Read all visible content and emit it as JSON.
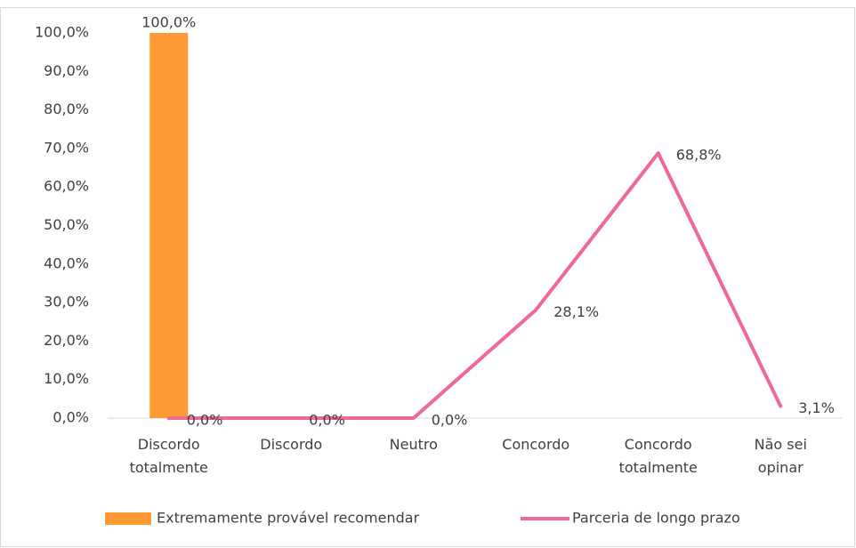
{
  "chart_data": {
    "type": "bar_line",
    "categories": [
      "Discordo totalmente",
      "Discordo",
      "Neutro",
      "Concordo",
      "Concordo totalmente",
      "Não sei opinar"
    ],
    "series": [
      {
        "name": "Extremamente provável recomendar",
        "type": "bar",
        "color": "#ff9933",
        "values": [
          100,
          null,
          null,
          null,
          null,
          null
        ],
        "value_labels": [
          "100,0%",
          null,
          null,
          null,
          null,
          null
        ]
      },
      {
        "name": "Parceria de longo prazo",
        "type": "line",
        "color": "#f0679b",
        "values": [
          0,
          0,
          0,
          28.1,
          68.8,
          3.1
        ],
        "value_labels": [
          "0,0%",
          "0,0%",
          "0,0%",
          "28,1%",
          "68,8%",
          "3,1%"
        ]
      }
    ],
    "ylim": [
      0,
      100
    ],
    "yticks": [
      {
        "value": 0,
        "label": "0,0%"
      },
      {
        "value": 10,
        "label": "10,0%"
      },
      {
        "value": 20,
        "label": "20,0%"
      },
      {
        "value": 30,
        "label": "30,0%"
      },
      {
        "value": 40,
        "label": "40,0%"
      },
      {
        "value": 50,
        "label": "50,0%"
      },
      {
        "value": 60,
        "label": "60,0%"
      },
      {
        "value": 70,
        "label": "70,0%"
      },
      {
        "value": 80,
        "label": "80,0%"
      },
      {
        "value": 90,
        "label": "90,0%"
      },
      {
        "value": 100,
        "label": "100,0%"
      }
    ],
    "grid": false,
    "legend": "bottom"
  }
}
